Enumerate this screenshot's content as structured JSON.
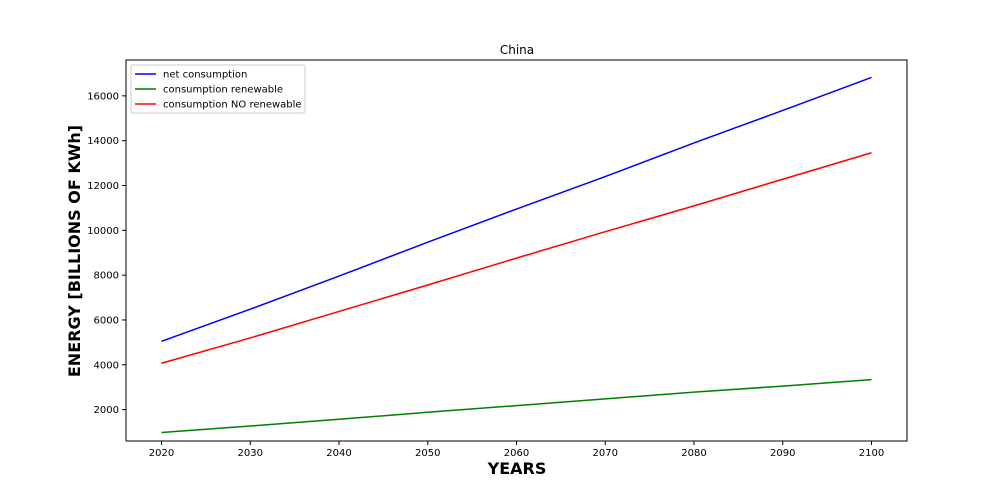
{
  "chart_data": {
    "type": "line",
    "title": "China",
    "xlabel": "YEARS",
    "ylabel": "ENERGY [BILLIONS OF KWh]",
    "xlim": [
      2016,
      2104
    ],
    "ylim": [
      600,
      17600
    ],
    "xticks": [
      2020,
      2030,
      2040,
      2050,
      2060,
      2070,
      2080,
      2090,
      2100
    ],
    "yticks": [
      2000,
      4000,
      6000,
      8000,
      10000,
      12000,
      14000,
      16000
    ],
    "x": [
      2020,
      2030,
      2040,
      2050,
      2060,
      2070,
      2080,
      2090,
      2100
    ],
    "series": [
      {
        "name": "net consumption",
        "color": "#0000ff",
        "values": [
          5050,
          6480,
          7960,
          9470,
          10950,
          12400,
          13900,
          15350,
          16820
        ]
      },
      {
        "name": "consumption renewable",
        "color": "#008000",
        "values": [
          980,
          1270,
          1570,
          1880,
          2180,
          2480,
          2780,
          3050,
          3340
        ]
      },
      {
        "name": "consumption NO renewable",
        "color": "#ff0000",
        "values": [
          4070,
          5200,
          6380,
          7560,
          8760,
          9940,
          11090,
          12280,
          13460
        ]
      }
    ],
    "grid": false,
    "legend_position": "top-left"
  }
}
